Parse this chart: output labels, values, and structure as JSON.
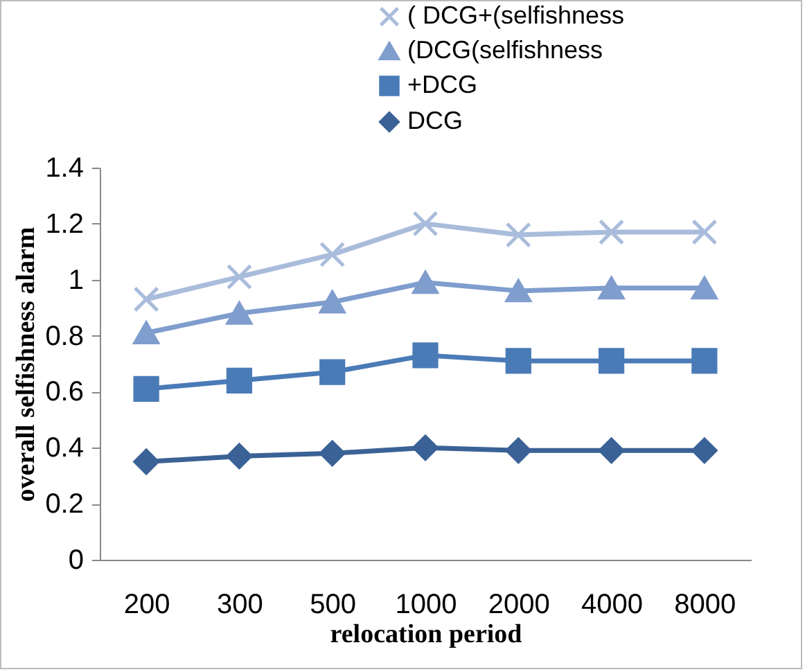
{
  "chart_data": {
    "type": "line",
    "xlabel": "relocation period",
    "ylabel": "overall selfishness alarm",
    "categories": [
      "200",
      "300",
      "500",
      "1000",
      "2000",
      "4000",
      "8000"
    ],
    "series": [
      {
        "name": "( DCG+(selfishness",
        "color": "#aabcdb",
        "marker": "cross",
        "values": [
          0.93,
          1.01,
          1.09,
          1.2,
          1.16,
          1.17,
          1.17
        ]
      },
      {
        "name": "(DCG(selfishness",
        "color": "#7f9dcd",
        "marker": "triangle",
        "values": [
          0.81,
          0.88,
          0.92,
          0.99,
          0.96,
          0.97,
          0.97
        ]
      },
      {
        "name": "+DCG",
        "color": "#4a7bb7",
        "marker": "square",
        "values": [
          0.61,
          0.64,
          0.67,
          0.73,
          0.71,
          0.71,
          0.71
        ]
      },
      {
        "name": "DCG",
        "color": "#3b6296",
        "marker": "diamond",
        "values": [
          0.35,
          0.37,
          0.38,
          0.4,
          0.39,
          0.39,
          0.39
        ]
      }
    ],
    "ylim": [
      0,
      1.4
    ],
    "yticks": [
      0,
      0.2,
      0.4,
      0.6,
      0.8,
      1,
      1.2,
      1.4
    ],
    "grid": false,
    "legend": "top right"
  }
}
